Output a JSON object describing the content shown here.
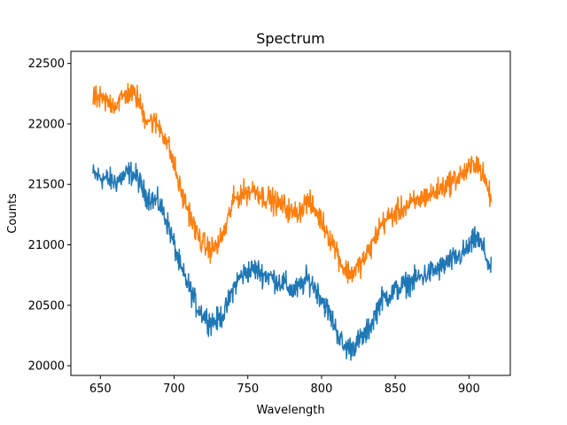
{
  "chart_data": {
    "type": "line",
    "title": "Spectrum",
    "xlabel": "Wavelength",
    "ylabel": "Counts",
    "xlim": [
      630,
      928
    ],
    "ylim": [
      19920,
      22600
    ],
    "x_ticks": [
      650,
      700,
      750,
      800,
      850,
      900
    ],
    "y_ticks": [
      20000,
      20500,
      21000,
      21500,
      22000,
      22500
    ],
    "grid": false,
    "legend": "none",
    "series": [
      {
        "color": "#1f77b4",
        "x": [
          645,
          650,
          655,
          660,
          665,
          670,
          675,
          680,
          685,
          690,
          695,
          700,
          705,
          710,
          715,
          720,
          725,
          730,
          735,
          740,
          745,
          750,
          755,
          760,
          765,
          770,
          775,
          780,
          785,
          790,
          795,
          800,
          805,
          810,
          815,
          820,
          825,
          830,
          835,
          840,
          845,
          850,
          855,
          860,
          865,
          870,
          875,
          880,
          885,
          890,
          895,
          900,
          905,
          910,
          915
        ],
        "y": [
          21580,
          21560,
          21540,
          21520,
          21560,
          21600,
          21560,
          21420,
          21380,
          21340,
          21200,
          21000,
          20780,
          20660,
          20500,
          20420,
          20360,
          20380,
          20460,
          20640,
          20740,
          20780,
          20800,
          20760,
          20740,
          20700,
          20680,
          20620,
          20640,
          20720,
          20660,
          20560,
          20440,
          20300,
          20150,
          20150,
          20200,
          20260,
          20380,
          20540,
          20580,
          20620,
          20660,
          20690,
          20720,
          20750,
          20780,
          20800,
          20850,
          20880,
          20920,
          20980,
          21060,
          20960,
          20780
        ],
        "noise": 75
      },
      {
        "color": "#ff7f0e",
        "x": [
          645,
          650,
          655,
          660,
          665,
          670,
          675,
          680,
          685,
          690,
          695,
          700,
          705,
          710,
          715,
          720,
          725,
          730,
          735,
          740,
          745,
          750,
          755,
          760,
          765,
          770,
          775,
          780,
          785,
          790,
          795,
          800,
          805,
          810,
          815,
          820,
          825,
          830,
          835,
          840,
          845,
          850,
          855,
          860,
          865,
          870,
          875,
          880,
          885,
          890,
          895,
          900,
          905,
          910,
          915
        ],
        "y": [
          22220,
          22200,
          22180,
          22160,
          22220,
          22260,
          22220,
          22060,
          22020,
          21980,
          21860,
          21660,
          21420,
          21280,
          21100,
          21000,
          20960,
          21000,
          21140,
          21360,
          21420,
          21440,
          21460,
          21400,
          21380,
          21340,
          21320,
          21260,
          21280,
          21360,
          21300,
          21200,
          21080,
          20960,
          20800,
          20760,
          20820,
          20900,
          21020,
          21160,
          21220,
          21260,
          21300,
          21330,
          21360,
          21400,
          21420,
          21460,
          21500,
          21540,
          21580,
          21620,
          21700,
          21560,
          21380
        ],
        "noise": 75
      }
    ]
  }
}
